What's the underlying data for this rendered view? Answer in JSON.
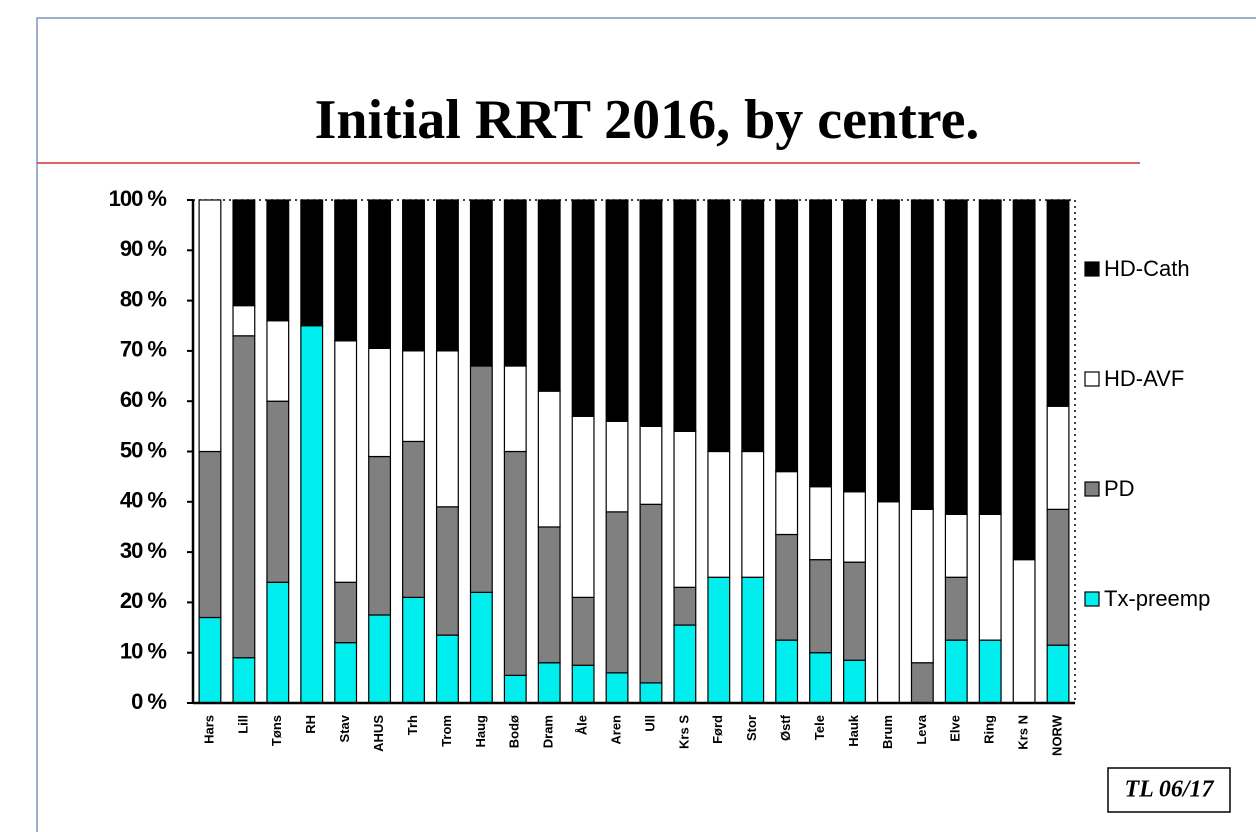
{
  "chart_data": {
    "type": "stacked-bar",
    "title": "Initial RRT 2016, by centre.",
    "categories": [
      "Hars",
      "Lill",
      "Tøns",
      "RH",
      "Stav",
      "AHUS",
      "Trh",
      "Trom",
      "Haug",
      "Bodø",
      "Dram",
      "Åle",
      "Aren",
      "Ull",
      "Krs S",
      "Førd",
      "Stor",
      "Østf",
      "Tele",
      "Hauk",
      "Brum",
      "Leva",
      "Elve",
      "Ring",
      "Krs N",
      "NORW"
    ],
    "series": [
      {
        "name": "Tx-preemp",
        "color": "#00eeee",
        "values": [
          17,
          9,
          24,
          75,
          12,
          17.5,
          21,
          13.5,
          22,
          5.5,
          8,
          7.5,
          6,
          4,
          15.5,
          25,
          25,
          12.5,
          10,
          8.5,
          0,
          0,
          12.5,
          12.5,
          0,
          11.5
        ]
      },
      {
        "name": "PD",
        "color": "#808080",
        "values": [
          33,
          64,
          36,
          0,
          12,
          31.5,
          31,
          25.5,
          45,
          44.5,
          27,
          13.5,
          32,
          35.5,
          7.5,
          0,
          0,
          21,
          18.5,
          19.5,
          0,
          8,
          12.5,
          0,
          0,
          27
        ]
      },
      {
        "name": "HD-AVF",
        "color": "#ffffff",
        "values": [
          50,
          6,
          16,
          0,
          48,
          21.5,
          18,
          31,
          0,
          17,
          27,
          36,
          18,
          15.5,
          31,
          25,
          25,
          12.5,
          14.5,
          14,
          40,
          30.5,
          12.5,
          25,
          28.5,
          20.5
        ]
      },
      {
        "name": "HD-Cath",
        "color": "#000000",
        "values": [
          0,
          21,
          24,
          25,
          28,
          29.5,
          30,
          30,
          33,
          33,
          38,
          43,
          44,
          45,
          46,
          50,
          50,
          54,
          57,
          58,
          60,
          61.5,
          62.5,
          62.5,
          71.5,
          41
        ]
      }
    ],
    "ylim": [
      0,
      100
    ],
    "yticks": [
      {
        "value": 0,
        "label": "0 %"
      },
      {
        "value": 10,
        "label": "10 %"
      },
      {
        "value": 20,
        "label": "20 %"
      },
      {
        "value": 30,
        "label": "30 %"
      },
      {
        "value": 40,
        "label": "40 %"
      },
      {
        "value": 50,
        "label": "50 %"
      },
      {
        "value": 60,
        "label": "60 %"
      },
      {
        "value": 70,
        "label": "70 %"
      },
      {
        "value": 80,
        "label": "80 %"
      },
      {
        "value": 90,
        "label": "90 %"
      },
      {
        "value": 100,
        "label": "100 %"
      }
    ],
    "legend": "right",
    "stamp": "TL 06/17"
  }
}
